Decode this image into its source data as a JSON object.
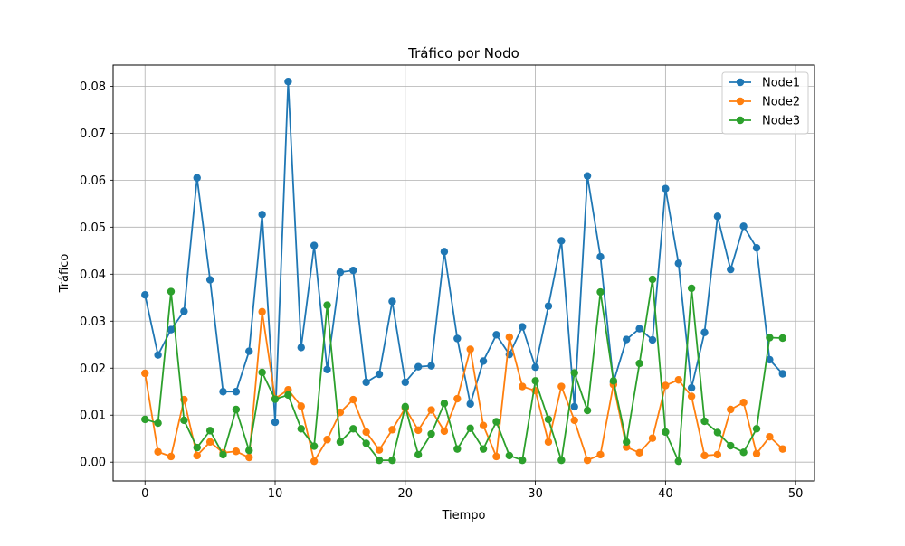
{
  "chart_data": {
    "type": "line",
    "title": "Tráfico por Nodo",
    "xlabel": "Tiempo",
    "ylabel": "Tráfico",
    "xlim": [
      -2.45,
      51.45
    ],
    "ylim": [
      -0.004,
      0.0845
    ],
    "xticks": [
      0,
      10,
      20,
      30,
      40,
      50
    ],
    "yticks": [
      0.0,
      0.01,
      0.02,
      0.03,
      0.04,
      0.05,
      0.06,
      0.07,
      0.08
    ],
    "ytick_labels": [
      "0.00",
      "0.01",
      "0.02",
      "0.03",
      "0.04",
      "0.05",
      "0.06",
      "0.07",
      "0.08"
    ],
    "grid": true,
    "legend_position": "top-right",
    "x": [
      0,
      1,
      2,
      3,
      4,
      5,
      6,
      7,
      8,
      9,
      10,
      11,
      12,
      13,
      14,
      15,
      16,
      17,
      18,
      19,
      20,
      21,
      22,
      23,
      24,
      25,
      26,
      27,
      28,
      29,
      30,
      31,
      32,
      33,
      34,
      35,
      36,
      37,
      38,
      39,
      40,
      41,
      42,
      43,
      44,
      45,
      46,
      47,
      48,
      49
    ],
    "series": [
      {
        "name": "Node1",
        "color": "#1f77b4",
        "values": [
          0.0356,
          0.0228,
          0.0282,
          0.0321,
          0.0605,
          0.0388,
          0.015,
          0.015,
          0.0236,
          0.0527,
          0.0085,
          0.081,
          0.0244,
          0.0461,
          0.0197,
          0.0404,
          0.0408,
          0.017,
          0.0187,
          0.0342,
          0.017,
          0.0203,
          0.0205,
          0.0448,
          0.0263,
          0.0124,
          0.0215,
          0.0271,
          0.0229,
          0.0288,
          0.0202,
          0.0332,
          0.0471,
          0.0118,
          0.0609,
          0.0437,
          0.017,
          0.0261,
          0.0284,
          0.026,
          0.0582,
          0.0423,
          0.0158,
          0.0276,
          0.0523,
          0.041,
          0.0502,
          0.0456,
          0.0218,
          0.0188
        ]
      },
      {
        "name": "Node2",
        "color": "#ff7f0e",
        "values": [
          0.0189,
          0.0022,
          0.0012,
          0.0133,
          0.0014,
          0.0043,
          0.002,
          0.0023,
          0.001,
          0.032,
          0.0135,
          0.0154,
          0.0119,
          0.0002,
          0.0048,
          0.0106,
          0.0133,
          0.0064,
          0.0026,
          0.0069,
          0.0115,
          0.0068,
          0.0111,
          0.0066,
          0.0135,
          0.024,
          0.0078,
          0.0012,
          0.0266,
          0.0161,
          0.0152,
          0.0043,
          0.0161,
          0.0089,
          0.0004,
          0.0016,
          0.0165,
          0.0032,
          0.002,
          0.0051,
          0.0163,
          0.0175,
          0.014,
          0.0014,
          0.0016,
          0.0112,
          0.0127,
          0.0018,
          0.0054,
          0.0028
        ]
      },
      {
        "name": "Node3",
        "color": "#2ca02c",
        "values": [
          0.0091,
          0.0083,
          0.0363,
          0.0089,
          0.0031,
          0.0067,
          0.0016,
          0.0112,
          0.0025,
          0.0191,
          0.0134,
          0.0143,
          0.0071,
          0.0034,
          0.0334,
          0.0043,
          0.0071,
          0.004,
          0.0004,
          0.0004,
          0.0118,
          0.0016,
          0.006,
          0.0125,
          0.0028,
          0.0072,
          0.0028,
          0.0086,
          0.0014,
          0.0004,
          0.0173,
          0.0091,
          0.0004,
          0.019,
          0.011,
          0.0362,
          0.0173,
          0.0043,
          0.021,
          0.0389,
          0.0064,
          0.0002,
          0.037,
          0.0087,
          0.0063,
          0.0035,
          0.0021,
          0.0071,
          0.0265,
          0.0264
        ]
      }
    ]
  }
}
